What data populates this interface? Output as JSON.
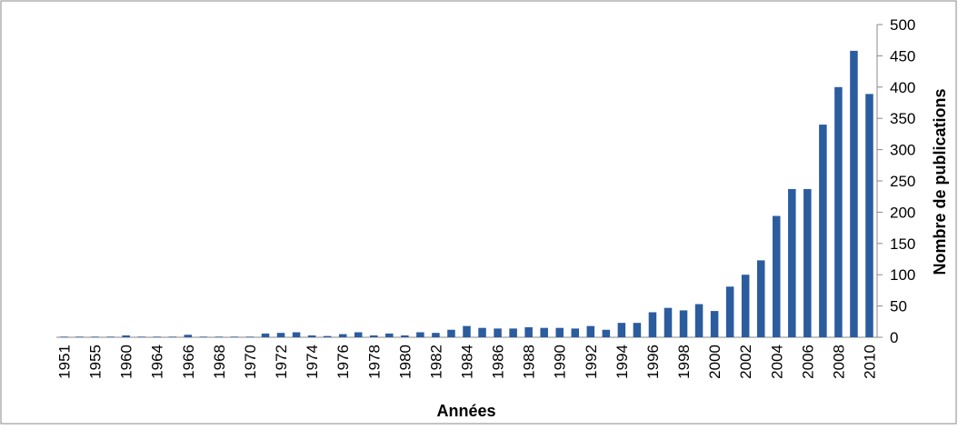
{
  "chart_data": {
    "type": "bar",
    "x_label": "Années",
    "y_label": "Nombre de publications",
    "categories": [
      "1951",
      null,
      "1955",
      null,
      "1960",
      null,
      "1964",
      null,
      "1966",
      null,
      "1968",
      null,
      "1970",
      null,
      "1972",
      null,
      "1974",
      null,
      "1976",
      null,
      "1978",
      null,
      "1980",
      null,
      "1982",
      null,
      "1984",
      null,
      "1986",
      null,
      "1988",
      null,
      "1990",
      null,
      "1992",
      null,
      "1994",
      null,
      "1996",
      null,
      "1998",
      null,
      "2000",
      null,
      "2002",
      null,
      "2004",
      null,
      "2006",
      null,
      "2008",
      null,
      "2010"
    ],
    "values": [
      1,
      1,
      1,
      1,
      3,
      1,
      1,
      1,
      4,
      1,
      1,
      1,
      1,
      6,
      7,
      8,
      3,
      2,
      5,
      8,
      3,
      6,
      3,
      8,
      7,
      12,
      18,
      15,
      14,
      14,
      16,
      15,
      15,
      14,
      18,
      12,
      23,
      23,
      40,
      47,
      43,
      53,
      42,
      81,
      100,
      123,
      194,
      237,
      237,
      340,
      400,
      458,
      389
    ],
    "color": "#2b5c9e",
    "ylim": [
      0,
      500
    ],
    "yticks": [
      0,
      50,
      100,
      150,
      200,
      250,
      300,
      350,
      400,
      450,
      500
    ],
    "y_axis_side": "right"
  }
}
